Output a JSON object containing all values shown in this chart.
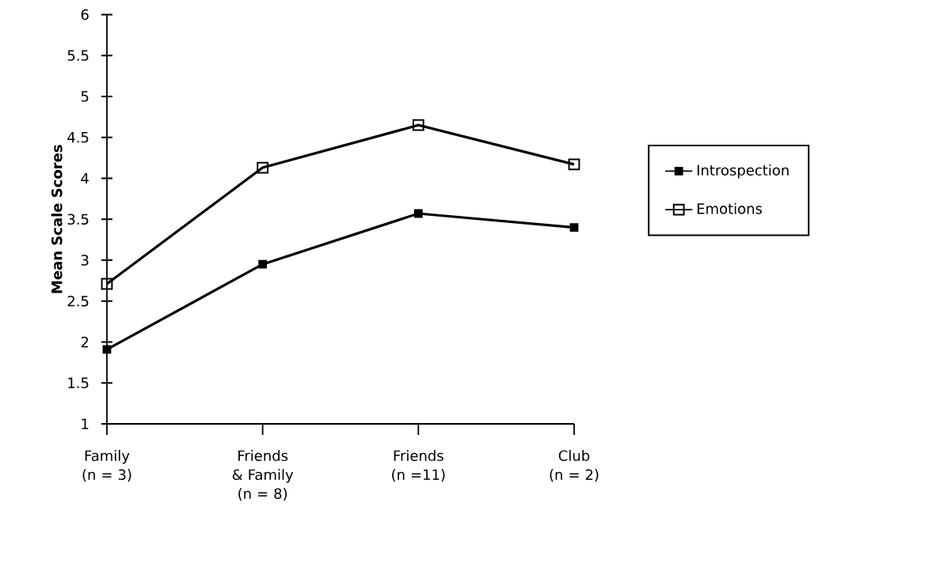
{
  "chart_data": {
    "type": "line",
    "ylabel": "Mean Scale Scores",
    "categories": [
      "Family (n = 3)",
      "Friends & Family (n = 8)",
      "Friends (n =11)",
      "Club (n = 2)"
    ],
    "series": [
      {
        "name": "Introspection",
        "color": "#000000",
        "values": [
          1.91,
          2.95,
          3.57,
          3.4
        ]
      },
      {
        "name": "Emotions",
        "color": "#000000",
        "values": [
          2.71,
          4.13,
          4.65,
          4.17
        ]
      }
    ],
    "ylim": [
      1,
      6
    ],
    "yticks": [
      1,
      1.5,
      2,
      2.5,
      3,
      3.5,
      4,
      4.5,
      5,
      5.5,
      6
    ],
    "grid": false,
    "legend": "right",
    "marker": "square",
    "line_style": "solid"
  }
}
